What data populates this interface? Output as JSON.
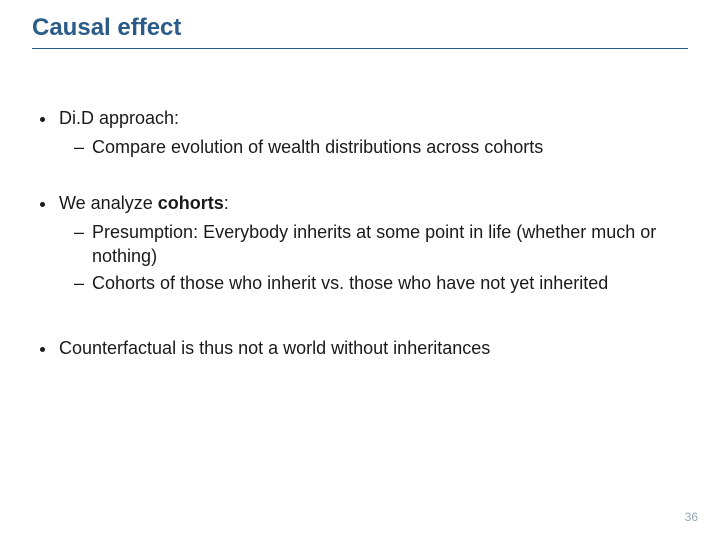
{
  "title": "Causal effect",
  "title_color": "#2a5b89",
  "title_fontsize": 24,
  "underline_color": "#2a5b89",
  "body_color": "#1a1a1a",
  "l1_fontsize": 18,
  "l2_fontsize": 18,
  "background_color": "#ffffff",
  "bullets": {
    "b1": {
      "text": "Di.D approach:"
    },
    "b1s": [
      {
        "text": "Compare evolution of wealth distributions across cohorts"
      }
    ],
    "b2": {
      "prefix": "We analyze ",
      "bold": "cohorts",
      "suffix": ":"
    },
    "b2s": [
      {
        "text": "Presumption: Everybody inherits at some point in life (whether much or nothing)"
      },
      {
        "text": "Cohorts of those who inherit vs. those who have not yet inherited"
      }
    ],
    "b3": {
      "text": "Counterfactual is thus not a world without inheritances"
    }
  },
  "page_number": "36",
  "page_number_color": "#98a8b8"
}
